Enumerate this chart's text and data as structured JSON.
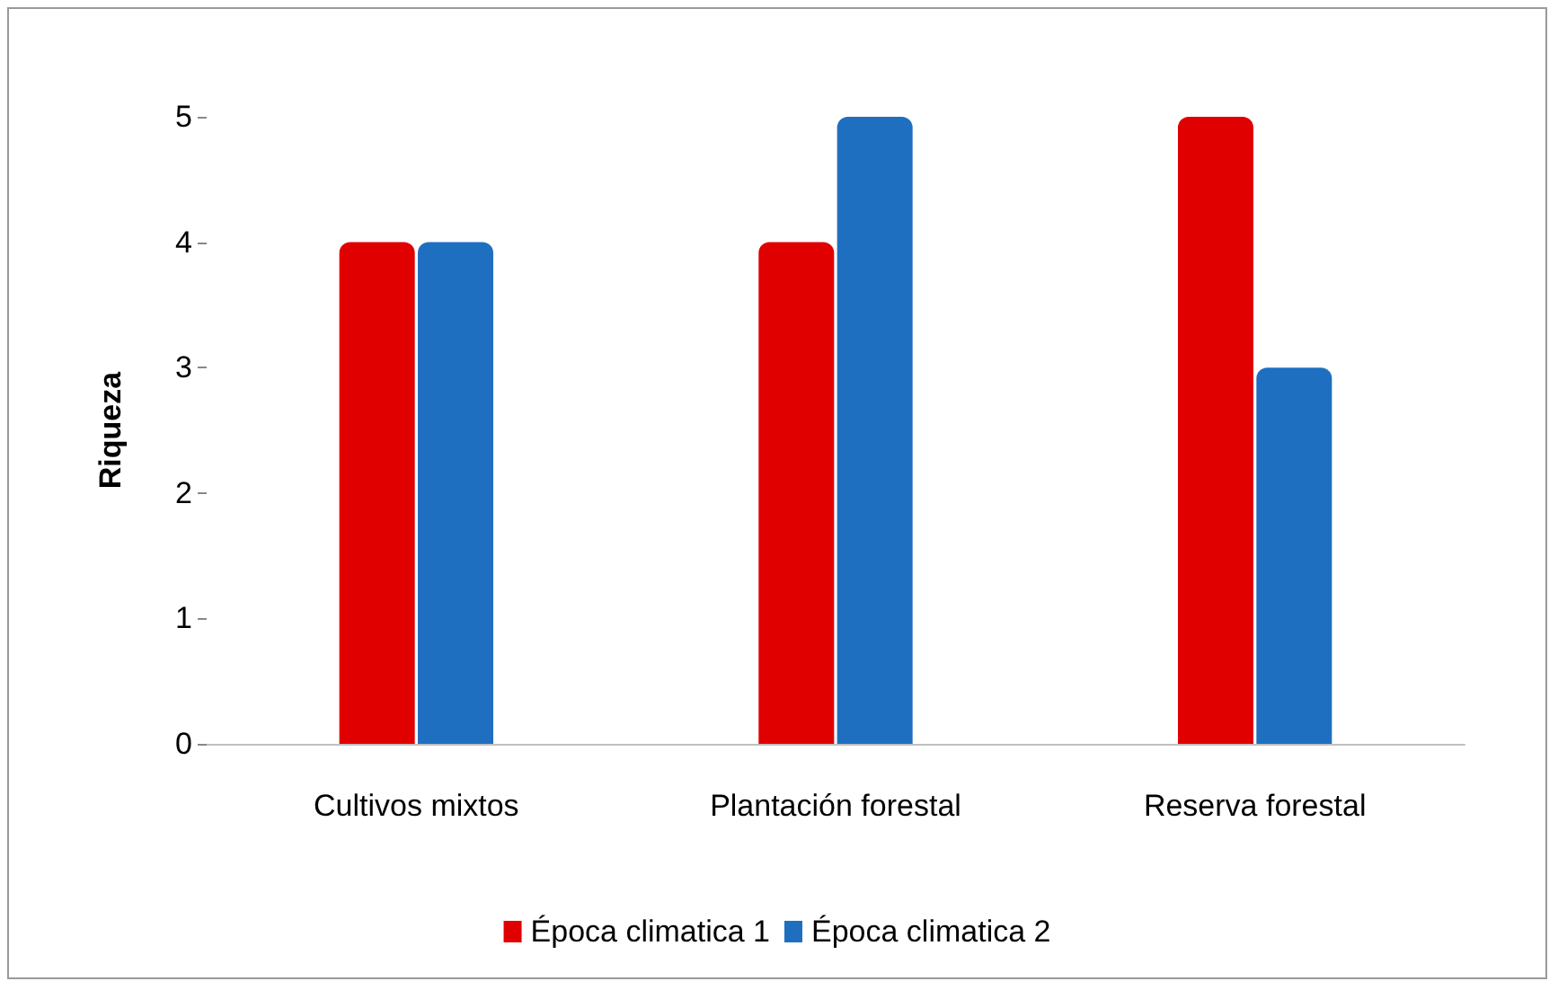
{
  "chart_data": {
    "type": "bar",
    "ylabel": "Riqueza",
    "categories": [
      "Cultivos mixtos",
      "Plantación forestal",
      "Reserva forestal"
    ],
    "series": [
      {
        "name": "Época climatica 1",
        "color": "#e00000",
        "values": [
          4,
          4,
          5
        ]
      },
      {
        "name": "Época climatica 2",
        "color": "#1f6fc0",
        "values": [
          4,
          5,
          3
        ]
      }
    ],
    "ylim": [
      0,
      5
    ],
    "yticks": [
      0,
      1,
      2,
      3,
      4,
      5
    ],
    "grid": false,
    "legend": "bottom"
  }
}
